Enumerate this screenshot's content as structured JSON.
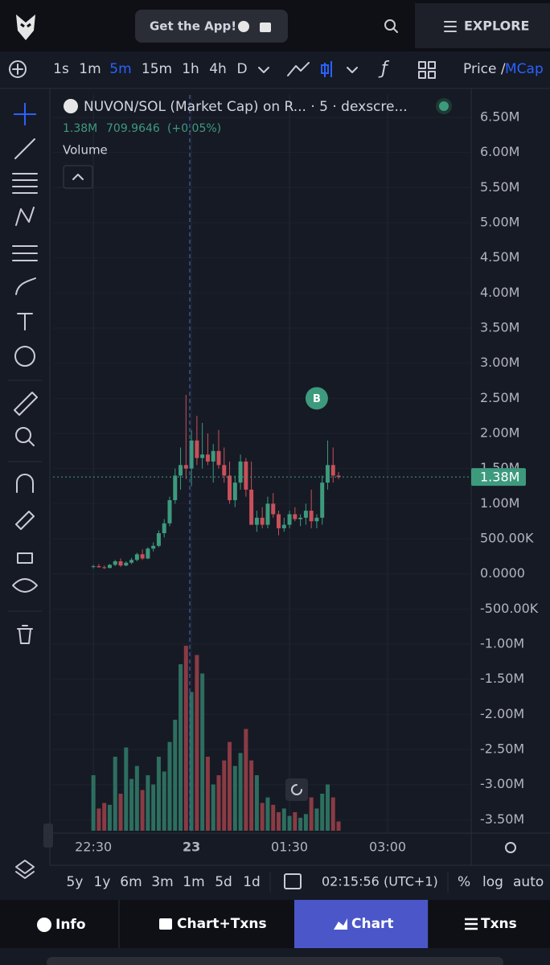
{
  "header": {
    "get_app": "Get the App!",
    "explore": "EXPLORE"
  },
  "toolbar": {
    "intervals": [
      "1s",
      "1m",
      "5m",
      "15m",
      "1h",
      "4h",
      "D"
    ],
    "active_interval": 2,
    "price": "Price /",
    "mcap": "MCap"
  },
  "legend": {
    "title": "NUVON/SOL (Market Cap) on R... · 5 · dexscre...",
    "value": "1.38M",
    "price": "709.9646",
    "change": "(+0.05%)",
    "volume": "Volume"
  },
  "chart_data": {
    "type": "candlestick",
    "x": [
      "22:30",
      "22:35",
      "22:40",
      "22:45",
      "22:50",
      "22:55",
      "23:00",
      "23:05",
      "23:10",
      "23:15",
      "23:20",
      "23:25",
      "23:30",
      "23:35",
      "23:40",
      "23:45",
      "23:50",
      "23:55",
      "00:00",
      "00:05",
      "00:10",
      "00:15",
      "00:20",
      "00:25",
      "00:30",
      "00:35",
      "00:40",
      "00:45",
      "00:50",
      "00:55",
      "01:00",
      "01:05",
      "01:10",
      "01:15",
      "01:20",
      "01:25",
      "01:30",
      "01:35",
      "01:40",
      "01:45",
      "01:50",
      "01:55",
      "02:00",
      "02:05",
      "02:10",
      "02:15"
    ],
    "open": [
      100000,
      110000,
      95000,
      85000,
      130000,
      180000,
      120000,
      160000,
      200000,
      280000,
      220000,
      360000,
      400000,
      580000,
      720000,
      1050000,
      1400000,
      1550000,
      1500000,
      1900000,
      1650000,
      1700000,
      1600000,
      1750000,
      1550000,
      1400000,
      1050000,
      1300000,
      1600000,
      1200000,
      700000,
      800000,
      700000,
      1000000,
      850000,
      650000,
      700000,
      850000,
      780000,
      800000,
      900000,
      750000,
      800000,
      1300000,
      1550000,
      1400000
    ],
    "high": [
      130000,
      140000,
      120000,
      140000,
      200000,
      220000,
      180000,
      230000,
      300000,
      350000,
      380000,
      450000,
      620000,
      780000,
      1100000,
      1500000,
      1800000,
      2550000,
      2050000,
      2250000,
      2150000,
      2000000,
      1850000,
      2050000,
      1800000,
      1600000,
      1400000,
      1700000,
      1650000,
      1600000,
      900000,
      950000,
      1100000,
      1150000,
      900000,
      800000,
      900000,
      950000,
      850000,
      1000000,
      1200000,
      850000,
      1400000,
      1900000,
      1800000,
      1450000
    ],
    "low": [
      80000,
      90000,
      70000,
      80000,
      110000,
      100000,
      110000,
      140000,
      180000,
      200000,
      210000,
      320000,
      380000,
      520000,
      680000,
      1000000,
      1200000,
      1350000,
      1250000,
      1550000,
      1500000,
      1550000,
      1300000,
      1500000,
      1300000,
      1000000,
      950000,
      1200000,
      1100000,
      700000,
      600000,
      650000,
      650000,
      800000,
      550000,
      600000,
      650000,
      750000,
      680000,
      700000,
      650000,
      650000,
      700000,
      1200000,
      1300000,
      1350000
    ],
    "close": [
      110000,
      95000,
      85000,
      130000,
      180000,
      120000,
      160000,
      200000,
      280000,
      220000,
      360000,
      400000,
      580000,
      720000,
      1050000,
      1400000,
      1550000,
      1500000,
      1900000,
      1650000,
      1700000,
      1600000,
      1750000,
      1550000,
      1400000,
      1050000,
      1300000,
      1600000,
      1200000,
      700000,
      800000,
      700000,
      1000000,
      850000,
      650000,
      700000,
      850000,
      780000,
      800000,
      900000,
      750000,
      800000,
      1300000,
      1550000,
      1400000,
      1380000
    ],
    "volume": [
      30,
      12,
      15,
      14,
      40,
      20,
      45,
      28,
      35,
      22,
      30,
      25,
      40,
      32,
      48,
      60,
      90,
      100,
      75,
      95,
      85,
      40,
      25,
      30,
      38,
      48,
      35,
      42,
      55,
      38,
      30,
      15,
      18,
      14,
      10,
      12,
      8,
      10,
      7,
      9,
      18,
      12,
      20,
      25,
      18,
      5
    ],
    "up_color": "#3d9a7d",
    "down_color": "#c8505a",
    "volume_up_color": "#2d6e5f",
    "volume_down_color": "#8a3b44",
    "xlim": [
      "21:53",
      "04:16"
    ],
    "xticks": [
      {
        "value": "22:30",
        "label": "22:30"
      },
      {
        "value": "00:00",
        "label": "23"
      },
      {
        "value": "01:30",
        "label": "01:30"
      },
      {
        "value": "03:00",
        "label": "03:00"
      }
    ],
    "ylim": [
      -3690000,
      6820000
    ],
    "yticks": [
      {
        "value": 6500000,
        "label": "6.50M"
      },
      {
        "value": 6000000,
        "label": "6.00M"
      },
      {
        "value": 5500000,
        "label": "5.50M"
      },
      {
        "value": 5000000,
        "label": "5.00M"
      },
      {
        "value": 4500000,
        "label": "4.50M"
      },
      {
        "value": 4000000,
        "label": "4.00M"
      },
      {
        "value": 3500000,
        "label": "3.50M"
      },
      {
        "value": 3000000,
        "label": "3.00M"
      },
      {
        "value": 2500000,
        "label": "2.50M"
      },
      {
        "value": 2000000,
        "label": "2.00M"
      },
      {
        "value": 1500000,
        "label": "1.50M"
      },
      {
        "value": 1000000,
        "label": "1.00M"
      },
      {
        "value": 500000,
        "label": "500.00K"
      },
      {
        "value": 0,
        "label": "0.0000"
      },
      {
        "value": -500000,
        "label": "-500.00K"
      },
      {
        "value": -1000000,
        "label": "-1.00M"
      },
      {
        "value": -1500000,
        "label": "-1.50M"
      },
      {
        "value": -2000000,
        "label": "-2.00M"
      },
      {
        "value": -2500000,
        "label": "-2.50M"
      },
      {
        "value": -3000000,
        "label": "-3.00M"
      },
      {
        "value": -3500000,
        "label": "-3.50M"
      }
    ],
    "last_price": {
      "value": 1380000,
      "label": "1.38M"
    },
    "marker": {
      "label": "B",
      "x": "01:55",
      "y": 2500000
    },
    "grid": true
  },
  "range_bar": {
    "ranges": [
      "5y",
      "1y",
      "6m",
      "3m",
      "1m",
      "5d",
      "1d"
    ],
    "time": "02:15:56 (UTC+1)",
    "percent": "%",
    "log": "log",
    "auto": "auto"
  },
  "nav": {
    "info": "Info",
    "chart_txns": "Chart+Txns",
    "chart": "Chart",
    "txns": "Txns"
  }
}
